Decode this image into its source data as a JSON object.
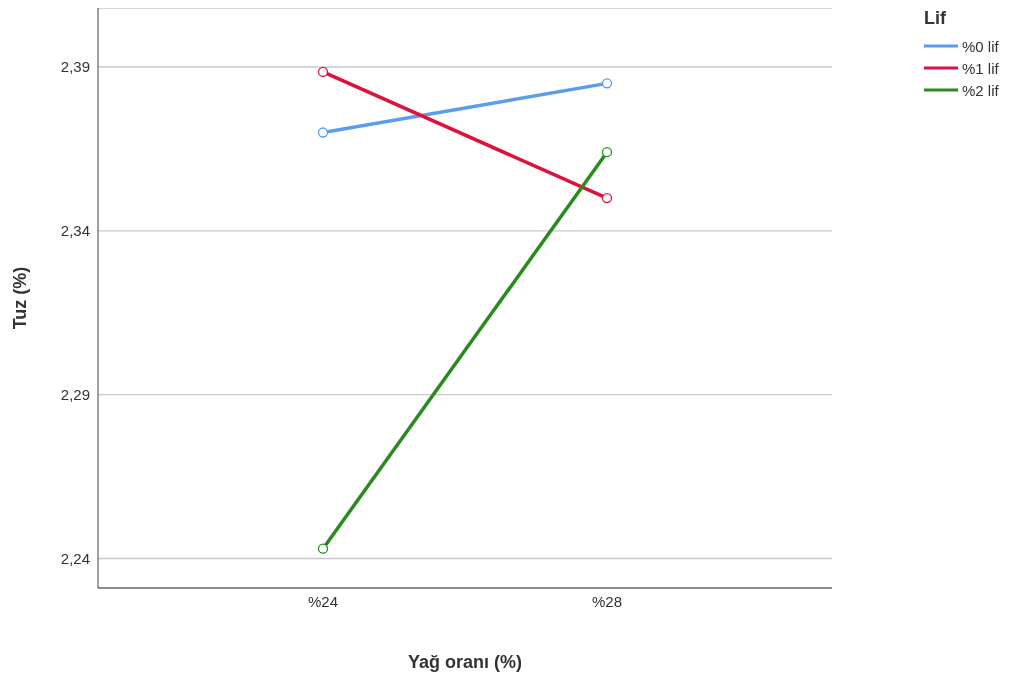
{
  "chart_data": {
    "type": "line",
    "xlabel": "Yağ oranı (%)",
    "ylabel": "Tuz (%)",
    "legend_title": "Lif",
    "categories": [
      "%24",
      "%28"
    ],
    "series": [
      {
        "name": "%0 lif",
        "color": "#5b9bf0",
        "values": [
          2.37,
          2.385
        ]
      },
      {
        "name": "%1 lif",
        "color": "#e0103c",
        "values": [
          2.3885,
          2.35
        ]
      },
      {
        "name": "%2 lif",
        "color": "#2a8a1f",
        "values": [
          2.243,
          2.364
        ]
      }
    ],
    "ylim": [
      2.231,
      2.408
    ],
    "yticks": [
      {
        "value": 2.24,
        "label": "2,24"
      },
      {
        "value": 2.29,
        "label": "2,29"
      },
      {
        "value": 2.34,
        "label": "2,34"
      },
      {
        "value": 2.39,
        "label": "2,39"
      }
    ],
    "grid": "y",
    "legend": "top right",
    "marker": "circle",
    "line_style": "solid"
  }
}
